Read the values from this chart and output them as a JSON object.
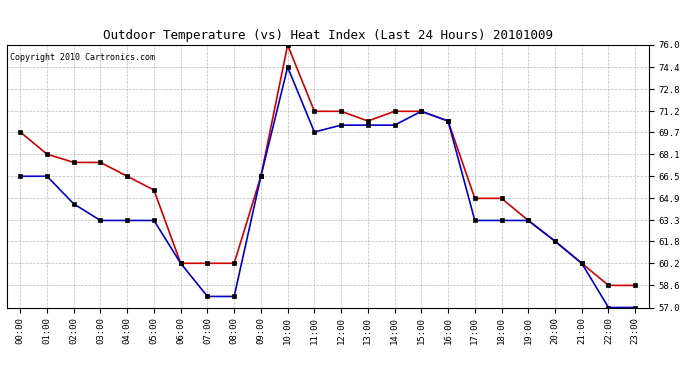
{
  "title": "Outdoor Temperature (vs) Heat Index (Last 24 Hours) 20101009",
  "copyright_text": "Copyright 2010 Cartronics.com",
  "hours": [
    "00:00",
    "01:00",
    "02:00",
    "03:00",
    "04:00",
    "05:00",
    "06:00",
    "07:00",
    "08:00",
    "09:00",
    "10:00",
    "11:00",
    "12:00",
    "13:00",
    "14:00",
    "15:00",
    "16:00",
    "17:00",
    "18:00",
    "19:00",
    "20:00",
    "21:00",
    "22:00",
    "23:00"
  ],
  "red_values": [
    69.7,
    68.1,
    67.5,
    67.5,
    66.5,
    65.5,
    60.2,
    60.2,
    60.2,
    66.5,
    76.0,
    71.2,
    71.2,
    70.5,
    71.2,
    71.2,
    70.5,
    64.9,
    64.9,
    63.3,
    61.8,
    60.2,
    58.6,
    58.6
  ],
  "blue_values": [
    66.5,
    66.5,
    64.5,
    63.3,
    63.3,
    63.3,
    60.2,
    57.8,
    57.8,
    66.5,
    74.4,
    69.7,
    70.2,
    70.2,
    70.2,
    71.2,
    70.5,
    63.3,
    63.3,
    63.3,
    61.8,
    60.2,
    57.0,
    57.0
  ],
  "red_color": "#cc0000",
  "blue_color": "#0000cc",
  "background_color": "#ffffff",
  "plot_bg_color": "#ffffff",
  "grid_color": "#aaaaaa",
  "ylim_min": 57.0,
  "ylim_max": 76.0,
  "yticks": [
    57.0,
    58.6,
    60.2,
    61.8,
    63.3,
    64.9,
    66.5,
    68.1,
    69.7,
    71.2,
    72.8,
    74.4,
    76.0
  ],
  "title_fontsize": 9,
  "copyright_fontsize": 6,
  "tick_fontsize": 6.5,
  "marker": "s",
  "marker_size": 2.5,
  "line_width": 1.2
}
